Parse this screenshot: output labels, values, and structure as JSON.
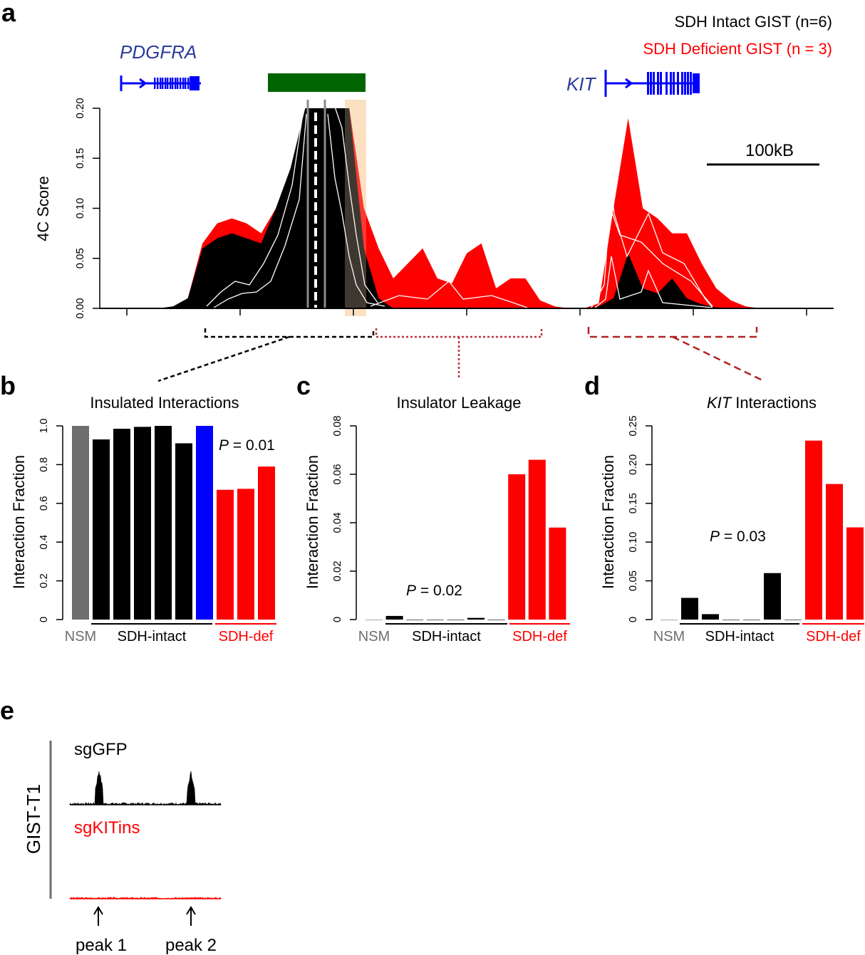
{
  "panel_labels": {
    "a": "a",
    "b": "b",
    "c": "c",
    "d": "d",
    "e": "e"
  },
  "colors": {
    "intact": "#000000",
    "deficient": "#ff0000",
    "nsm": "#6e6e6e",
    "blue_sample": "#0000ff",
    "gene": "#0000ff",
    "gene_label": "#2b3d9c",
    "anchor_bar": "#006400",
    "shade": "#fde0c2"
  },
  "panel_a": {
    "legend": {
      "intact": "SDH Intact GIST (n=6)",
      "deficient": "SDH Deficient GIST (n = 3)"
    },
    "genes": {
      "left": "PDGFRA",
      "right": "KIT"
    },
    "ylabel": "4C Score",
    "yticks": [
      "0.00",
      "0.05",
      "0.10",
      "0.15",
      "0.20"
    ],
    "scale_bar": "100kB"
  },
  "chart_data": [
    {
      "panel": "a",
      "type": "area",
      "title": "",
      "ylabel": "4C Score",
      "ylim": [
        0,
        0.2
      ],
      "x": [
        0,
        8,
        10,
        12,
        14,
        16,
        18,
        20,
        22,
        24,
        26,
        28,
        30,
        32,
        34,
        36,
        38,
        40,
        42,
        44,
        46,
        48,
        50,
        52,
        54,
        56,
        58,
        60,
        62,
        64,
        66,
        68,
        70,
        72,
        74,
        76,
        78,
        80,
        82,
        84,
        86,
        88,
        90,
        92,
        94,
        96,
        98,
        100
      ],
      "series": [
        {
          "name": "SDH Deficient GIST (n = 3)",
          "values": [
            0,
            0,
            0.002,
            0.01,
            0.065,
            0.085,
            0.09,
            0.085,
            0.075,
            0.1,
            0.14,
            0.2,
            0.2,
            0.2,
            0.2,
            0.1,
            0.06,
            0.03,
            0.045,
            0.06,
            0.03,
            0.025,
            0.055,
            0.065,
            0.02,
            0.03,
            0.03,
            0.008,
            0.002,
            0,
            0,
            0.005,
            0.1,
            0.19,
            0.1,
            0.09,
            0.075,
            0.075,
            0.045,
            0.02,
            0.008,
            0.002,
            0,
            0,
            0,
            0,
            0,
            0
          ]
        },
        {
          "name": "SDH Intact GIST (n=6)",
          "values": [
            0,
            0,
            0.002,
            0.01,
            0.06,
            0.07,
            0.075,
            0.07,
            0.065,
            0.1,
            0.14,
            0.2,
            0.2,
            0.2,
            0.2,
            0.06,
            0.01,
            0,
            0,
            0,
            0,
            0,
            0,
            0,
            0,
            0,
            0,
            0,
            0,
            0,
            0,
            0.002,
            0.01,
            0.055,
            0.02,
            0.015,
            0.03,
            0.01,
            0.004,
            0.001,
            0,
            0,
            0,
            0,
            0,
            0,
            0,
            0
          ]
        }
      ]
    },
    {
      "panel": "b",
      "type": "bar",
      "title": "Insulated Interactions",
      "ylabel": "Interaction Fraction",
      "ylim": [
        0,
        1.0
      ],
      "yticks": [
        "0",
        "0.2",
        "0.4",
        "0.6",
        "0.8",
        "1.0"
      ],
      "values": [
        1.0,
        0.93,
        0.985,
        0.995,
        1.0,
        0.91,
        1.0,
        0.67,
        0.675,
        0.79
      ],
      "groups": [
        "nsm",
        "intact",
        "intact",
        "intact",
        "intact",
        "intact",
        "blue",
        "def",
        "def",
        "def"
      ],
      "group_labels": {
        "nsm": "NSM",
        "intact": "SDH-intact",
        "def": "SDH-def"
      },
      "p_label": "P",
      "p_value": "= 0.01"
    },
    {
      "panel": "c",
      "type": "bar",
      "title": "Insulator Leakage",
      "ylabel": "Interaction Fraction",
      "ylim": [
        0,
        0.08
      ],
      "yticks": [
        "0",
        "0.02",
        "0.04",
        "0.06",
        "0.08"
      ],
      "values": [
        0,
        0.0015,
        0,
        0,
        0,
        0.0007,
        0,
        0.06,
        0.066,
        0.038
      ],
      "groups": [
        "nsm",
        "intact",
        "intact",
        "intact",
        "intact",
        "intact",
        "intact",
        "def",
        "def",
        "def"
      ],
      "group_labels": {
        "nsm": "NSM",
        "intact": "SDH-intact",
        "def": "SDH-def"
      },
      "p_label": "P",
      "p_value": "= 0.02"
    },
    {
      "panel": "d",
      "type": "bar",
      "title_italic": "KIT",
      "title": " Interactions",
      "ylabel": "Interaction Fraction",
      "ylim": [
        0,
        0.25
      ],
      "yticks": [
        "0",
        "0.05",
        "0.10",
        "0.15",
        "0.20",
        "0.25"
      ],
      "values": [
        0,
        0.028,
        0.007,
        0,
        0,
        0.06,
        0,
        0.231,
        0.175,
        0.119
      ],
      "groups": [
        "nsm",
        "intact",
        "intact",
        "intact",
        "intact",
        "intact",
        "intact",
        "def",
        "def",
        "def"
      ],
      "group_labels": {
        "nsm": "NSM",
        "intact": "SDH-intact",
        "def": "SDH-def"
      },
      "p_label": "P",
      "p_value": "= 0.03"
    }
  ],
  "panel_e": {
    "row_label": "GIST-T1",
    "tracks": [
      "sgGFP",
      "sgKITins"
    ],
    "peaks": [
      "peak 1",
      "peak 2"
    ]
  }
}
